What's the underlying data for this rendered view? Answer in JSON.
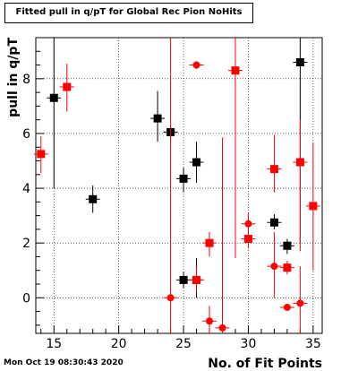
{
  "chart_data": {
    "type": "scatter",
    "title": "Fitted pull in q/pT for Global Rec Pion NoHits",
    "xlabel": "No. of Fit Points",
    "ylabel": "pull in q/pT",
    "xlim": [
      13.6,
      35.7
    ],
    "ylim": [
      -1.3,
      9.5
    ],
    "x_ticks": [
      15,
      20,
      25,
      30,
      35
    ],
    "y_ticks": [
      0,
      2,
      4,
      6,
      8
    ],
    "grid": true,
    "series": [
      {
        "color": "#000000",
        "marker": "square",
        "points": [
          {
            "x": 15,
            "y": 7.3,
            "ylo": 4.0,
            "yhi": 9.5
          },
          {
            "x": 18,
            "y": 3.6,
            "ylo": 3.1,
            "yhi": 4.1
          },
          {
            "x": 23,
            "y": 6.55,
            "ylo": 5.7,
            "yhi": 7.55
          },
          {
            "x": 24,
            "y": 6.05,
            "ylo": 5.75,
            "yhi": 6.3
          },
          {
            "x": 25,
            "y": 4.35,
            "ylo": 3.85,
            "yhi": 4.75
          },
          {
            "x": 25,
            "y": 0.65,
            "ylo": 0.35,
            "yhi": 0.95
          },
          {
            "x": 26,
            "y": 4.95,
            "ylo": 4.2,
            "yhi": 5.7
          },
          {
            "x": 26,
            "y": 0.65,
            "ylo": 0.0,
            "yhi": 1.45
          },
          {
            "x": 32,
            "y": 2.75,
            "ylo": 2.5,
            "yhi": 3.05
          },
          {
            "x": 33,
            "y": 1.9,
            "ylo": 1.6,
            "yhi": 2.15
          },
          {
            "x": 34,
            "y": 8.6,
            "ylo": 2.0,
            "yhi": 9.5
          }
        ]
      },
      {
        "color": "#ff0000",
        "marker": "mixed",
        "points": [
          {
            "x": 14,
            "y": 5.25,
            "ylo": 4.55,
            "yhi": 5.9,
            "m": "square"
          },
          {
            "x": 16,
            "y": 7.7,
            "ylo": 6.8,
            "yhi": 8.55,
            "m": "square"
          },
          {
            "x": 24,
            "y": 0.0,
            "ylo": -1.3,
            "yhi": 9.5,
            "m": "circle"
          },
          {
            "x": 26,
            "y": 8.5,
            "ylo": 8.35,
            "yhi": 8.6,
            "m": "circle"
          },
          {
            "x": 26,
            "y": 0.65,
            "ylo": 0.2,
            "yhi": 1.15,
            "m": "square"
          },
          {
            "x": 27,
            "y": 2.0,
            "ylo": 1.5,
            "yhi": 2.4,
            "m": "square"
          },
          {
            "x": 27,
            "y": -0.85,
            "ylo": -1.3,
            "yhi": -0.3,
            "m": "circle"
          },
          {
            "x": 28,
            "y": -1.1,
            "ylo": -1.3,
            "yhi": 5.85,
            "m": "circle"
          },
          {
            "x": 29,
            "y": 8.3,
            "ylo": 1.45,
            "yhi": 9.5,
            "m": "square"
          },
          {
            "x": 30,
            "y": 2.7,
            "ylo": 2.35,
            "yhi": 3.1,
            "m": "circle"
          },
          {
            "x": 30,
            "y": 2.15,
            "ylo": 1.8,
            "yhi": 2.4,
            "m": "square"
          },
          {
            "x": 32,
            "y": 4.7,
            "ylo": 3.85,
            "yhi": 5.95,
            "m": "square"
          },
          {
            "x": 32,
            "y": 1.15,
            "ylo": 0.0,
            "yhi": 2.4,
            "m": "circle"
          },
          {
            "x": 33,
            "y": 1.1,
            "ylo": 0.85,
            "yhi": 1.35,
            "m": "square"
          },
          {
            "x": 33,
            "y": -0.35,
            "ylo": -0.45,
            "yhi": -0.25,
            "m": "circle"
          },
          {
            "x": 34,
            "y": 4.95,
            "ylo": 1.7,
            "yhi": 6.5,
            "m": "square"
          },
          {
            "x": 34,
            "y": -0.2,
            "ylo": -1.3,
            "yhi": 1.15,
            "m": "circle"
          },
          {
            "x": 35,
            "y": 3.35,
            "ylo": 1.0,
            "yhi": 5.65,
            "m": "square"
          }
        ]
      }
    ]
  },
  "timestamp": "Mon Oct 19 08:30:43 2020"
}
